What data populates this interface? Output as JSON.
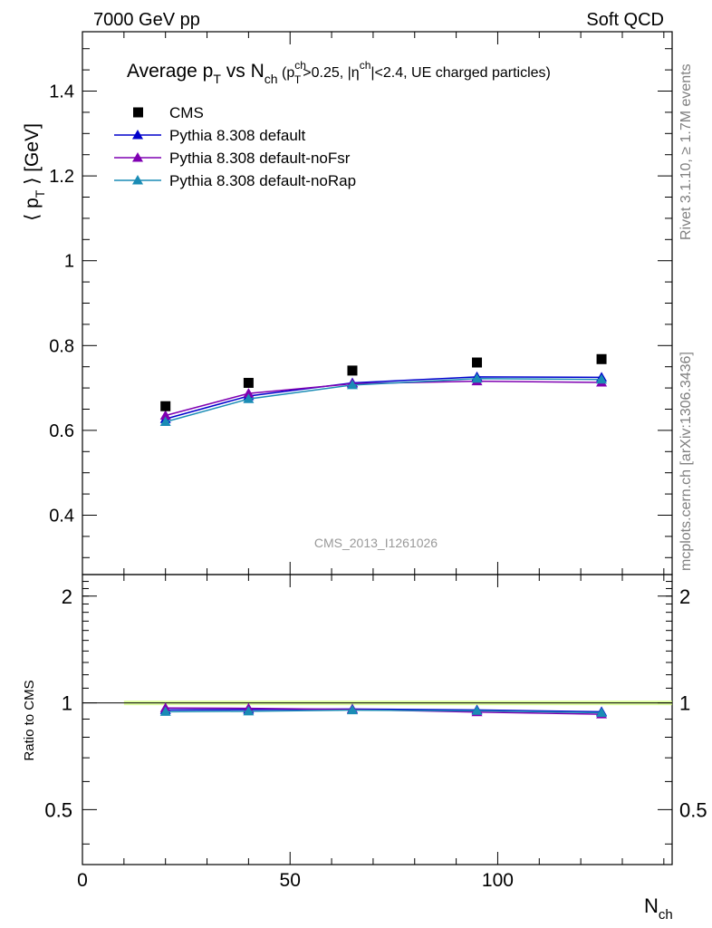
{
  "header": {
    "left": "7000 GeV pp",
    "right": "Soft QCD"
  },
  "side_labels": {
    "top": "Rivet 3.1.10, ≥ 1.7M events",
    "bottom": "mcplots.cern.ch [arXiv:1306.3436]"
  },
  "watermark": "CMS_2013_I1261026",
  "chart_data": {
    "type": "line",
    "title": {
      "main": "Average p",
      "main_sub": "T",
      "vs": " vs N",
      "vs_sub": "ch",
      "cut_open": " (p",
      "cut_sup": "ch",
      "cut_sub": "T",
      "cut_mid": ">0.25, |η",
      "cut_sup2": "ch",
      "cut_end": "|<2.4, UE charged particles)"
    },
    "ylabel": {
      "open": "⟨ p",
      "sub": "T",
      "close": " ⟩ [GeV]"
    },
    "xlabel": {
      "main": "N",
      "sub": "ch"
    },
    "ratio_ylabel": "Ratio to CMS",
    "xlim": [
      0,
      142
    ],
    "ylim": [
      0.26,
      1.54
    ],
    "ratio_ylim": [
      0.35,
      2.3
    ],
    "x_ticks": [
      0,
      50,
      100
    ],
    "y_ticks": [
      0.4,
      0.6,
      0.8,
      1,
      1.2,
      1.4
    ],
    "y_tick_labels": [
      "0.4",
      "0.6",
      "0.8",
      "1",
      "1.2",
      "1.4"
    ],
    "ratio_ticks": [
      0.5,
      1,
      2
    ],
    "ratio_tick_labels": [
      "0.5",
      "1",
      "2"
    ],
    "x": [
      20,
      40,
      65,
      95,
      125
    ],
    "data": {
      "name": "CMS",
      "color": "#000000",
      "values": [
        0.657,
        0.712,
        0.741,
        0.76,
        0.768
      ]
    },
    "band": {
      "x_range": [
        10,
        142
      ],
      "low": 0.985,
      "high": 1.015,
      "color": "#ccff66"
    },
    "series": [
      {
        "name": "Pythia 8.308 default",
        "color": "#0000cc",
        "values": [
          0.627,
          0.681,
          0.712,
          0.726,
          0.725
        ],
        "ratio": [
          0.955,
          0.957,
          0.961,
          0.955,
          0.944
        ]
      },
      {
        "name": "Pythia 8.308 default-noFsr",
        "color": "#7f00b2",
        "values": [
          0.635,
          0.687,
          0.71,
          0.716,
          0.713
        ],
        "ratio": [
          0.967,
          0.965,
          0.958,
          0.942,
          0.929
        ]
      },
      {
        "name": "Pythia 8.308 default-noRap",
        "color": "#1a8cb5",
        "values": [
          0.62,
          0.674,
          0.707,
          0.722,
          0.72
        ],
        "ratio": [
          0.944,
          0.947,
          0.954,
          0.95,
          0.938
        ]
      }
    ],
    "legend_placement": "top-left"
  }
}
